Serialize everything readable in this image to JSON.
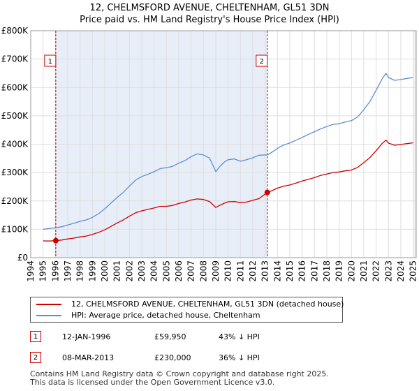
{
  "header": {
    "title_line1": "12, CHELMSFORD AVENUE, CHELTENHAM, GL51 3DN",
    "title_line2": "Price paid vs. HM Land Registry's House Price Index (HPI)"
  },
  "colors": {
    "price_line": "#cc0000",
    "hpi_line": "#5b8fd0",
    "shade": "#e8eef8",
    "grid": "#dddddd",
    "marker_line": "#cc0000"
  },
  "chart_data": {
    "type": "line",
    "title": "12, CHELMSFORD AVENUE, CHELTENHAM, GL51 3DN",
    "subtitle": "Price paid vs. HM Land Registry's House Price Index (HPI)",
    "xlabel": "",
    "ylabel": "",
    "xlim": [
      1994,
      2025.25
    ],
    "ylim": [
      0,
      800000
    ],
    "grid": true,
    "y_ticks": [
      {
        "value": 0,
        "label": "£0"
      },
      {
        "value": 100000,
        "label": "£100K"
      },
      {
        "value": 200000,
        "label": "£200K"
      },
      {
        "value": 300000,
        "label": "£300K"
      },
      {
        "value": 400000,
        "label": "£400K"
      },
      {
        "value": 500000,
        "label": "£500K"
      },
      {
        "value": 600000,
        "label": "£600K"
      },
      {
        "value": 700000,
        "label": "£700K"
      },
      {
        "value": 800000,
        "label": "£800K"
      }
    ],
    "x_ticks": [
      "1994",
      "1995",
      "1996",
      "1997",
      "1998",
      "1999",
      "2000",
      "2001",
      "2002",
      "2003",
      "2004",
      "2005",
      "2006",
      "2007",
      "2008",
      "2009",
      "2010",
      "2011",
      "2012",
      "2013",
      "2014",
      "2015",
      "2016",
      "2017",
      "2018",
      "2019",
      "2020",
      "2021",
      "2022",
      "2023",
      "2024",
      "2025"
    ],
    "data_start": 1995.0,
    "data_end": 2025.0,
    "shaded_region": [
      1996.03,
      2013.18
    ],
    "series": [
      {
        "name": "12, CHELMSFORD AVENUE, CHELTENHAM, GL51 3DN (detached house)",
        "x": [
          1995.0,
          1995.5,
          1996.03,
          1996.5,
          1997,
          1997.5,
          1998,
          1998.5,
          1999,
          1999.5,
          2000,
          2000.5,
          2001,
          2001.5,
          2002,
          2002.5,
          2003,
          2003.5,
          2004,
          2004.5,
          2005,
          2005.5,
          2006,
          2006.5,
          2007,
          2007.5,
          2008,
          2008.5,
          2009,
          2009.3,
          2009.7,
          2010,
          2010.5,
          2011,
          2011.5,
          2012,
          2012.5,
          2013.18,
          2013.5,
          2014,
          2014.5,
          2015,
          2015.5,
          2016,
          2016.5,
          2017,
          2017.5,
          2018,
          2018.5,
          2019,
          2019.5,
          2020,
          2020.5,
          2021,
          2021.5,
          2022,
          2022.5,
          2022.8,
          2023,
          2023.5,
          2024,
          2024.5,
          2025
        ],
        "values": [
          59000,
          58500,
          59950,
          62000,
          66000,
          69000,
          73000,
          76000,
          82000,
          89000,
          98000,
          110000,
          122000,
          133000,
          146000,
          158000,
          165000,
          170000,
          175000,
          181000,
          181000,
          184000,
          191000,
          196000,
          203000,
          207000,
          205000,
          198000,
          177000,
          184000,
          192000,
          197000,
          198000,
          194000,
          196000,
          202000,
          208000,
          230000,
          235000,
          245000,
          252000,
          256000,
          263000,
          270000,
          276000,
          282000,
          290000,
          295000,
          300000,
          302000,
          306000,
          309000,
          318000,
          335000,
          353000,
          377000,
          403000,
          414000,
          404000,
          396000,
          399000,
          402000,
          405000
        ]
      },
      {
        "name": "HPI: Average price, detached house, Cheltenham",
        "x": [
          1995.0,
          1995.5,
          1996.03,
          1996.5,
          1997,
          1997.5,
          1998,
          1998.5,
          1999,
          1999.5,
          2000,
          2000.5,
          2001,
          2001.5,
          2002,
          2002.5,
          2003,
          2003.5,
          2004,
          2004.5,
          2005,
          2005.5,
          2006,
          2006.5,
          2007,
          2007.5,
          2008,
          2008.5,
          2009,
          2009.3,
          2009.7,
          2010,
          2010.5,
          2011,
          2011.5,
          2012,
          2012.5,
          2013.18,
          2013.5,
          2014,
          2014.5,
          2015,
          2015.5,
          2016,
          2016.5,
          2017,
          2017.5,
          2018,
          2018.5,
          2019,
          2019.5,
          2020,
          2020.5,
          2021,
          2021.5,
          2022,
          2022.5,
          2022.8,
          2023,
          2023.5,
          2024,
          2024.5,
          2025
        ],
        "values": [
          100000,
          103000,
          105000,
          109000,
          115000,
          121000,
          128000,
          133000,
          142000,
          155000,
          172000,
          192000,
          212000,
          230000,
          252000,
          273000,
          286000,
          294000,
          303000,
          314000,
          317000,
          322000,
          333000,
          342000,
          356000,
          366000,
          362000,
          351000,
          303000,
          320000,
          337000,
          345000,
          348000,
          340000,
          345000,
          352000,
          361000,
          362000,
          370000,
          385000,
          397000,
          404000,
          414000,
          424000,
          434000,
          444000,
          454000,
          462000,
          470000,
          472000,
          478000,
          483000,
          496000,
          521000,
          551000,
          590000,
          631000,
          650000,
          635000,
          625000,
          628000,
          632000,
          635000
        ]
      }
    ],
    "annotations": [
      {
        "label": "1",
        "x": 1996.03,
        "value": 59950
      },
      {
        "label": "2",
        "x": 2013.18,
        "value": 230000
      }
    ]
  },
  "legend": {
    "price_label": "12, CHELMSFORD AVENUE, CHELTENHAM, GL51 3DN (detached house)",
    "hpi_label": "HPI: Average price, detached house, Cheltenham"
  },
  "transactions": [
    {
      "num": "1",
      "date": "12-JAN-1996",
      "price": "£59,950",
      "hpi": "43% ↓ HPI"
    },
    {
      "num": "2",
      "date": "08-MAR-2013",
      "price": "£230,000",
      "hpi": "36% ↓ HPI"
    }
  ],
  "footer": {
    "line1": "Contains HM Land Registry data © Crown copyright and database right 2025.",
    "line2": "This data is licensed under the Open Government Licence v3.0."
  }
}
